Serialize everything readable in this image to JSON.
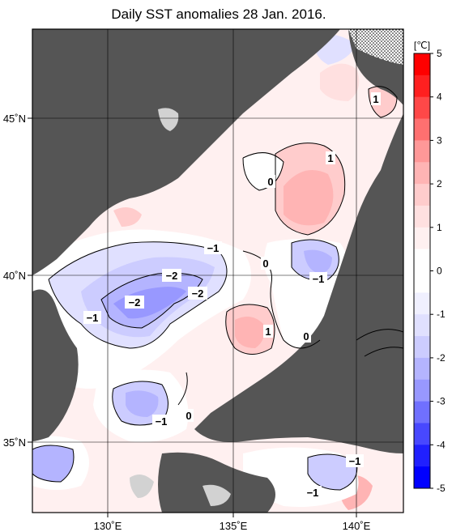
{
  "title": "Daily SST anomalies 28 Jan. 2016.",
  "axes": {
    "lat_labels": [
      "45˚N",
      "40˚N",
      "35˚N"
    ],
    "lon_labels": [
      "130˚E",
      "135˚E",
      "140˚E"
    ]
  },
  "colorbar": {
    "unit": "[℃]",
    "ticks": [
      "5",
      "4",
      "3",
      "2",
      "1",
      "0",
      "-1",
      "-2",
      "-3",
      "-4",
      "-5"
    ],
    "colors_top_to_bottom": [
      "#ff0000",
      "#ff2020",
      "#ff4848",
      "#ff7070",
      "#ff9898",
      "#ffb4b4",
      "#ffcccc",
      "#ffe0e0",
      "#fff0f0",
      "#ffffff",
      "#ffffff",
      "#f0f0ff",
      "#e0e0ff",
      "#ccccff",
      "#b4b4ff",
      "#9898ff",
      "#7070ff",
      "#4848ff",
      "#2020ff",
      "#0000ff"
    ]
  },
  "contour_labels": [
    {
      "text": "1",
      "id": "c1"
    },
    {
      "text": "1",
      "id": "c2"
    },
    {
      "text": "0",
      "id": "c3"
    },
    {
      "text": "−1",
      "id": "c4"
    },
    {
      "text": "0",
      "id": "c5"
    },
    {
      "text": "−2",
      "id": "c6"
    },
    {
      "text": "−2",
      "id": "c7"
    },
    {
      "text": "−2",
      "id": "c8"
    },
    {
      "text": "−1",
      "id": "c9"
    },
    {
      "text": "−1",
      "id": "c10"
    },
    {
      "text": "1",
      "id": "c11"
    },
    {
      "text": "0",
      "id": "c12"
    },
    {
      "text": "−1",
      "id": "c13"
    },
    {
      "text": "0",
      "id": "c14"
    },
    {
      "text": "−1",
      "id": "c15"
    },
    {
      "text": "−1",
      "id": "c16"
    }
  ],
  "colors": {
    "land": "#555555",
    "missing_land": "#d2d2d2",
    "grid": "#000000"
  }
}
